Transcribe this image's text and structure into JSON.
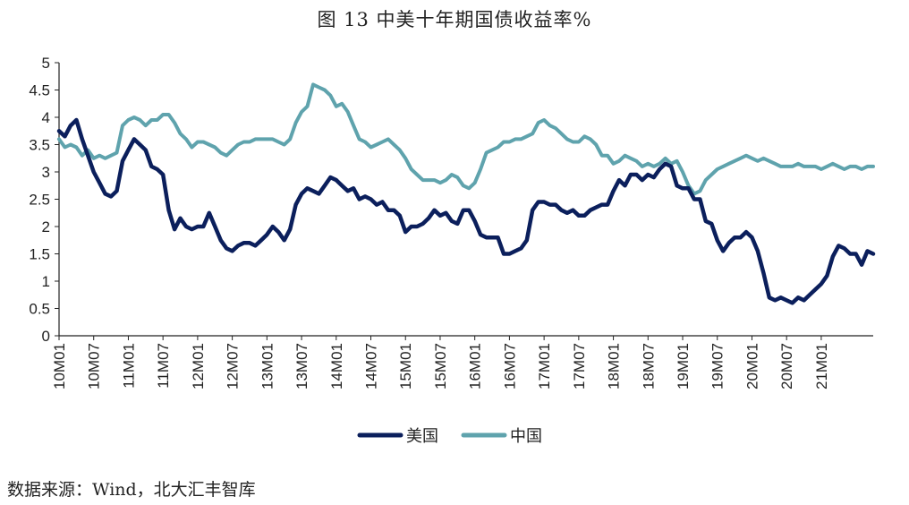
{
  "chart_data": {
    "type": "line",
    "title": "图 13 中美十年期国债收益率%",
    "source": "数据来源：Wind，北大汇丰智库",
    "ylim": [
      0,
      5
    ],
    "yticks": [
      "0",
      "0.5",
      "1",
      "1.5",
      "2",
      "2.5",
      "3",
      "3.5",
      "4",
      "4.5",
      "5"
    ],
    "xticks": [
      "10M01",
      "10M07",
      "11M01",
      "11M07",
      "12M01",
      "12M07",
      "13M01",
      "13M07",
      "14M01",
      "14M07",
      "15M01",
      "15M07",
      "16M01",
      "16M07",
      "17M01",
      "17M07",
      "18M01",
      "18M07",
      "19M01",
      "19M07",
      "20M01",
      "20M07",
      "21M01"
    ],
    "x_start": "2010-01",
    "x_end": "2021-10",
    "legend_position": "bottom",
    "series": [
      {
        "name": "美国",
        "color": "#0b1f5c",
        "points": [
          [
            0,
            3.75
          ],
          [
            1,
            3.65
          ],
          [
            2,
            3.85
          ],
          [
            3,
            3.95
          ],
          [
            4,
            3.6
          ],
          [
            5,
            3.3
          ],
          [
            6,
            3.0
          ],
          [
            7,
            2.8
          ],
          [
            8,
            2.6
          ],
          [
            9,
            2.55
          ],
          [
            10,
            2.65
          ],
          [
            11,
            3.2
          ],
          [
            12,
            3.4
          ],
          [
            13,
            3.6
          ],
          [
            14,
            3.5
          ],
          [
            15,
            3.4
          ],
          [
            16,
            3.1
          ],
          [
            17,
            3.05
          ],
          [
            18,
            2.95
          ],
          [
            19,
            2.3
          ],
          [
            20,
            1.95
          ],
          [
            21,
            2.15
          ],
          [
            22,
            2.0
          ],
          [
            23,
            1.95
          ],
          [
            24,
            2.0
          ],
          [
            25,
            2.0
          ],
          [
            26,
            2.25
          ],
          [
            27,
            2.0
          ],
          [
            28,
            1.75
          ],
          [
            29,
            1.6
          ],
          [
            30,
            1.55
          ],
          [
            31,
            1.65
          ],
          [
            32,
            1.7
          ],
          [
            33,
            1.7
          ],
          [
            34,
            1.65
          ],
          [
            35,
            1.75
          ],
          [
            36,
            1.85
          ],
          [
            37,
            2.0
          ],
          [
            38,
            1.9
          ],
          [
            39,
            1.75
          ],
          [
            40,
            1.95
          ],
          [
            41,
            2.4
          ],
          [
            42,
            2.6
          ],
          [
            43,
            2.7
          ],
          [
            44,
            2.65
          ],
          [
            45,
            2.6
          ],
          [
            46,
            2.75
          ],
          [
            47,
            2.9
          ],
          [
            48,
            2.85
          ],
          [
            49,
            2.75
          ],
          [
            50,
            2.65
          ],
          [
            51,
            2.7
          ],
          [
            52,
            2.5
          ],
          [
            53,
            2.55
          ],
          [
            54,
            2.5
          ],
          [
            55,
            2.4
          ],
          [
            56,
            2.45
          ],
          [
            57,
            2.3
          ],
          [
            58,
            2.3
          ],
          [
            59,
            2.2
          ],
          [
            60,
            1.9
          ],
          [
            61,
            2.0
          ],
          [
            62,
            2.0
          ],
          [
            63,
            2.05
          ],
          [
            64,
            2.15
          ],
          [
            65,
            2.3
          ],
          [
            66,
            2.2
          ],
          [
            67,
            2.25
          ],
          [
            68,
            2.1
          ],
          [
            69,
            2.05
          ],
          [
            70,
            2.3
          ],
          [
            71,
            2.3
          ],
          [
            72,
            2.1
          ],
          [
            73,
            1.85
          ],
          [
            74,
            1.8
          ],
          [
            75,
            1.8
          ],
          [
            76,
            1.8
          ],
          [
            77,
            1.5
          ],
          [
            78,
            1.5
          ],
          [
            79,
            1.55
          ],
          [
            80,
            1.6
          ],
          [
            81,
            1.75
          ],
          [
            82,
            2.3
          ],
          [
            83,
            2.45
          ],
          [
            84,
            2.45
          ],
          [
            85,
            2.4
          ],
          [
            86,
            2.4
          ],
          [
            87,
            2.3
          ],
          [
            88,
            2.25
          ],
          [
            89,
            2.3
          ],
          [
            90,
            2.2
          ],
          [
            91,
            2.2
          ],
          [
            92,
            2.3
          ],
          [
            93,
            2.35
          ],
          [
            94,
            2.4
          ],
          [
            95,
            2.4
          ],
          [
            96,
            2.65
          ],
          [
            97,
            2.85
          ],
          [
            98,
            2.75
          ],
          [
            99,
            2.95
          ],
          [
            100,
            2.95
          ],
          [
            101,
            2.85
          ],
          [
            102,
            2.95
          ],
          [
            103,
            2.9
          ],
          [
            104,
            3.05
          ],
          [
            105,
            3.15
          ],
          [
            106,
            3.1
          ],
          [
            107,
            2.75
          ],
          [
            108,
            2.7
          ],
          [
            109,
            2.7
          ],
          [
            110,
            2.5
          ],
          [
            111,
            2.5
          ],
          [
            112,
            2.1
          ],
          [
            113,
            2.05
          ],
          [
            114,
            1.75
          ],
          [
            115,
            1.55
          ],
          [
            116,
            1.7
          ],
          [
            117,
            1.8
          ],
          [
            118,
            1.8
          ],
          [
            119,
            1.9
          ],
          [
            120,
            1.8
          ],
          [
            121,
            1.55
          ],
          [
            122,
            1.15
          ],
          [
            123,
            0.7
          ],
          [
            124,
            0.65
          ],
          [
            125,
            0.7
          ],
          [
            126,
            0.65
          ],
          [
            127,
            0.6
          ],
          [
            128,
            0.7
          ],
          [
            129,
            0.65
          ],
          [
            130,
            0.75
          ],
          [
            131,
            0.85
          ],
          [
            132,
            0.95
          ],
          [
            133,
            1.1
          ],
          [
            134,
            1.45
          ],
          [
            135,
            1.65
          ],
          [
            136,
            1.6
          ],
          [
            137,
            1.5
          ],
          [
            138,
            1.5
          ],
          [
            139,
            1.3
          ],
          [
            140,
            1.55
          ],
          [
            141,
            1.5
          ]
        ]
      },
      {
        "name": "中国",
        "color": "#5fa3ad",
        "points": [
          [
            0,
            3.6
          ],
          [
            1,
            3.45
          ],
          [
            2,
            3.5
          ],
          [
            3,
            3.45
          ],
          [
            4,
            3.3
          ],
          [
            5,
            3.4
          ],
          [
            6,
            3.25
          ],
          [
            7,
            3.3
          ],
          [
            8,
            3.25
          ],
          [
            9,
            3.3
          ],
          [
            10,
            3.35
          ],
          [
            11,
            3.85
          ],
          [
            12,
            3.95
          ],
          [
            13,
            4.0
          ],
          [
            14,
            3.95
          ],
          [
            15,
            3.85
          ],
          [
            16,
            3.95
          ],
          [
            17,
            3.95
          ],
          [
            18,
            4.05
          ],
          [
            19,
            4.05
          ],
          [
            20,
            3.9
          ],
          [
            21,
            3.7
          ],
          [
            22,
            3.6
          ],
          [
            23,
            3.45
          ],
          [
            24,
            3.55
          ],
          [
            25,
            3.55
          ],
          [
            26,
            3.5
          ],
          [
            27,
            3.45
          ],
          [
            28,
            3.35
          ],
          [
            29,
            3.3
          ],
          [
            30,
            3.4
          ],
          [
            31,
            3.5
          ],
          [
            32,
            3.55
          ],
          [
            33,
            3.55
          ],
          [
            34,
            3.6
          ],
          [
            35,
            3.6
          ],
          [
            36,
            3.6
          ],
          [
            37,
            3.6
          ],
          [
            38,
            3.55
          ],
          [
            39,
            3.5
          ],
          [
            40,
            3.6
          ],
          [
            41,
            3.9
          ],
          [
            42,
            4.1
          ],
          [
            43,
            4.2
          ],
          [
            44,
            4.6
          ],
          [
            45,
            4.55
          ],
          [
            46,
            4.5
          ],
          [
            47,
            4.4
          ],
          [
            48,
            4.2
          ],
          [
            49,
            4.25
          ],
          [
            50,
            4.1
          ],
          [
            51,
            3.85
          ],
          [
            52,
            3.6
          ],
          [
            53,
            3.55
          ],
          [
            54,
            3.45
          ],
          [
            55,
            3.5
          ],
          [
            56,
            3.55
          ],
          [
            57,
            3.6
          ],
          [
            58,
            3.5
          ],
          [
            59,
            3.4
          ],
          [
            60,
            3.25
          ],
          [
            61,
            3.05
          ],
          [
            62,
            2.95
          ],
          [
            63,
            2.85
          ],
          [
            64,
            2.85
          ],
          [
            65,
            2.85
          ],
          [
            66,
            2.8
          ],
          [
            67,
            2.85
          ],
          [
            68,
            2.95
          ],
          [
            69,
            2.9
          ],
          [
            70,
            2.75
          ],
          [
            71,
            2.7
          ],
          [
            72,
            2.8
          ],
          [
            73,
            3.05
          ],
          [
            74,
            3.35
          ],
          [
            75,
            3.4
          ],
          [
            76,
            3.45
          ],
          [
            77,
            3.55
          ],
          [
            78,
            3.55
          ],
          [
            79,
            3.6
          ],
          [
            80,
            3.6
          ],
          [
            81,
            3.65
          ],
          [
            82,
            3.7
          ],
          [
            83,
            3.9
          ],
          [
            84,
            3.95
          ],
          [
            85,
            3.85
          ],
          [
            86,
            3.8
          ],
          [
            87,
            3.7
          ],
          [
            88,
            3.6
          ],
          [
            89,
            3.55
          ],
          [
            90,
            3.55
          ],
          [
            91,
            3.65
          ],
          [
            92,
            3.6
          ],
          [
            93,
            3.5
          ],
          [
            94,
            3.3
          ],
          [
            95,
            3.3
          ],
          [
            96,
            3.15
          ],
          [
            97,
            3.2
          ],
          [
            98,
            3.3
          ],
          [
            99,
            3.25
          ],
          [
            100,
            3.2
          ],
          [
            101,
            3.1
          ],
          [
            102,
            3.15
          ],
          [
            103,
            3.1
          ],
          [
            104,
            3.15
          ],
          [
            105,
            3.25
          ],
          [
            106,
            3.15
          ],
          [
            107,
            3.2
          ],
          [
            108,
            3.0
          ],
          [
            109,
            2.75
          ],
          [
            110,
            2.6
          ],
          [
            111,
            2.65
          ],
          [
            112,
            2.85
          ],
          [
            113,
            2.95
          ],
          [
            114,
            3.05
          ],
          [
            115,
            3.1
          ],
          [
            116,
            3.15
          ],
          [
            117,
            3.2
          ],
          [
            118,
            3.25
          ],
          [
            119,
            3.3
          ],
          [
            120,
            3.25
          ],
          [
            121,
            3.2
          ],
          [
            122,
            3.25
          ],
          [
            123,
            3.2
          ],
          [
            124,
            3.15
          ],
          [
            125,
            3.1
          ],
          [
            126,
            3.1
          ],
          [
            127,
            3.1
          ],
          [
            128,
            3.15
          ],
          [
            129,
            3.1
          ],
          [
            130,
            3.1
          ],
          [
            131,
            3.1
          ],
          [
            132,
            3.05
          ],
          [
            133,
            3.1
          ],
          [
            134,
            3.15
          ],
          [
            135,
            3.1
          ],
          [
            136,
            3.05
          ],
          [
            137,
            3.1
          ],
          [
            138,
            3.1
          ],
          [
            139,
            3.05
          ],
          [
            140,
            3.1
          ],
          [
            141,
            3.1
          ]
        ]
      }
    ]
  }
}
